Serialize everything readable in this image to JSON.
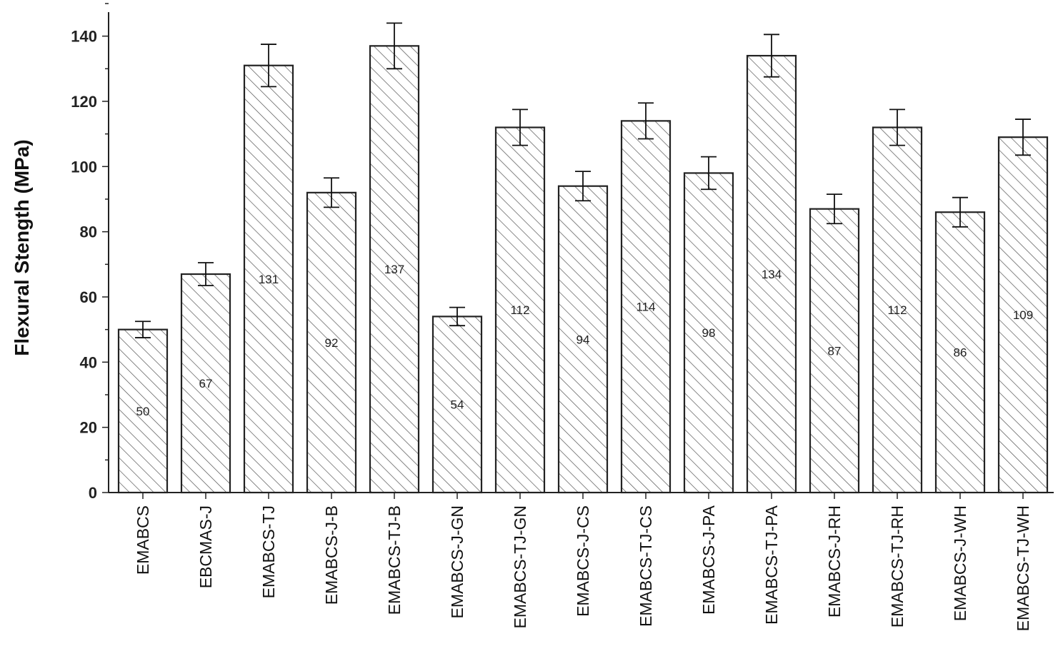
{
  "chart_data": {
    "type": "bar",
    "title": "",
    "xlabel": "",
    "ylabel": "Flexural Stength (MPa)",
    "ylim": [
      0,
      150
    ],
    "yticks": [
      0,
      20,
      40,
      60,
      80,
      100,
      120,
      140
    ],
    "grid": false,
    "legend": "none",
    "bar_fill": "hatched",
    "colors": {
      "bar_stroke": "#222222",
      "hatch": "#555555",
      "axis": "#222222",
      "background": "#ffffff"
    },
    "categories": [
      "EMABCS",
      "EBCMAS-J",
      "EMABCS-TJ",
      "EMABCS-J-B",
      "EMABCS-TJ-B",
      "EMABCS-J-GN",
      "EMABCS-TJ-GN",
      "EMABCS-J-CS",
      "EMABCS-TJ-CS",
      "EMABCS-J-PA",
      "EMABCS-TJ-PA",
      "EMABCS-J-RH",
      "EMABCS-TJ-RH",
      "EMABCS-J-WH",
      "EMABCS-TJ-WH"
    ],
    "values": [
      50,
      67,
      131,
      92,
      137,
      54,
      112,
      94,
      114,
      98,
      134,
      87,
      112,
      86,
      109
    ],
    "error": [
      2.5,
      3.5,
      6.5,
      4.5,
      7,
      2.8,
      5.5,
      4.5,
      5.5,
      5,
      6.5,
      4.5,
      5.5,
      4.5,
      5.5
    ],
    "data_labels": [
      "50",
      "67",
      "131",
      "92",
      "137",
      "54",
      "112",
      "94",
      "114",
      "98",
      "134",
      "87",
      "112",
      "86",
      "109"
    ]
  }
}
